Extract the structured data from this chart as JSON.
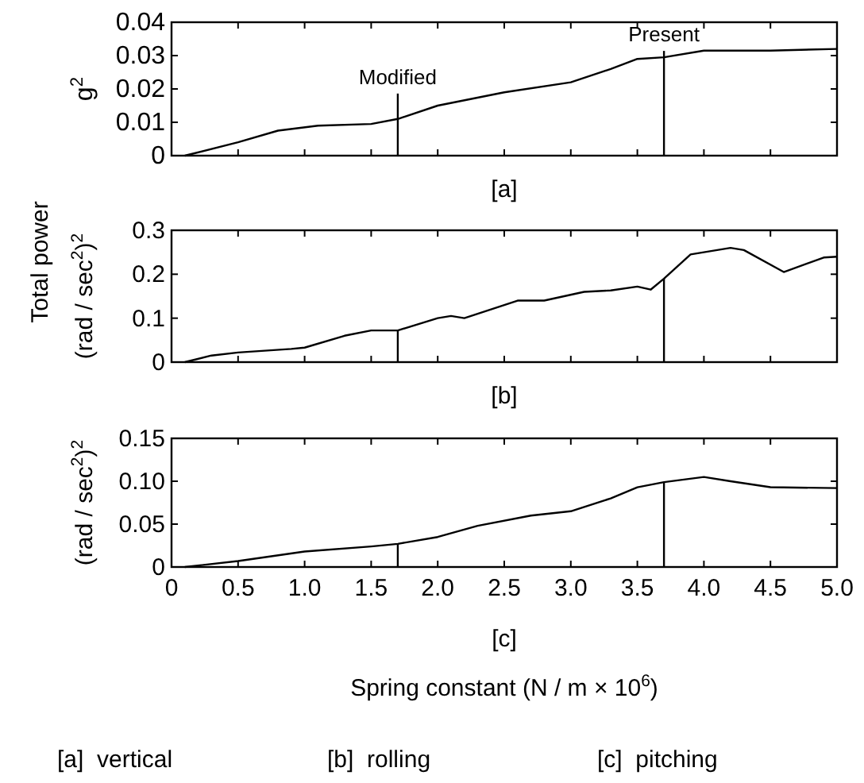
{
  "chart_data": [
    {
      "type": "line",
      "ylabel": "g$^{2}$",
      "xlim": [
        0,
        5
      ],
      "ylim": [
        0,
        0.04
      ],
      "xticks": [
        0.5,
        1,
        1.5,
        2,
        2.5,
        3,
        3.5,
        4,
        4.5
      ],
      "yticks": [
        0,
        0.01,
        0.02,
        0.03,
        0.04
      ],
      "tick_labels": "y",
      "marker": "none",
      "line_style": "solid",
      "series": [
        {
          "color": "#000000",
          "x": [
            0.1,
            0.5,
            0.8,
            1.1,
            1.5,
            1.7,
            2.0,
            2.5,
            3.0,
            3.3,
            3.5,
            3.7,
            4.0,
            4.5,
            5.0
          ],
          "values": [
            0,
            0.004,
            0.0075,
            0.009,
            0.0095,
            0.011,
            0.015,
            0.019,
            0.022,
            0.026,
            0.029,
            0.0295,
            0.0315,
            0.0315,
            0.032
          ]
        }
      ],
      "ref_lines": [
        {
          "axis": "x",
          "value": 1.7,
          "label": "Modified"
        },
        {
          "axis": "x",
          "value": 3.7,
          "label": "Present"
        }
      ],
      "annotations": [
        "[a]"
      ]
    },
    {
      "type": "line",
      "ylabel": "(rad / sec$^{2}$)$^{2}$",
      "xlim": [
        0,
        5
      ],
      "ylim": [
        0,
        0.3
      ],
      "xticks": [
        0.5,
        1,
        1.5,
        2,
        2.5,
        3,
        3.5,
        4,
        4.5
      ],
      "yticks": [
        0,
        0.1,
        0.2,
        0.3
      ],
      "tick_labels": "y",
      "marker": "none",
      "line_style": "solid",
      "series": [
        {
          "color": "#000000",
          "x": [
            0.1,
            0.3,
            0.5,
            0.9,
            1.0,
            1.3,
            1.5,
            1.7,
            2.0,
            2.1,
            2.2,
            2.6,
            2.8,
            3.1,
            3.3,
            3.5,
            3.6,
            3.7,
            3.9,
            4.0,
            4.2,
            4.3,
            4.6,
            4.9,
            5.0
          ],
          "values": [
            0,
            0.015,
            0.022,
            0.03,
            0.033,
            0.06,
            0.072,
            0.072,
            0.1,
            0.105,
            0.1,
            0.14,
            0.14,
            0.16,
            0.163,
            0.172,
            0.165,
            0.19,
            0.245,
            0.25,
            0.26,
            0.255,
            0.205,
            0.238,
            0.24
          ]
        }
      ],
      "ref_lines": [
        {
          "axis": "x",
          "value": 1.7
        },
        {
          "axis": "x",
          "value": 3.7
        }
      ],
      "annotations": [
        "[b]",
        "Total power"
      ]
    },
    {
      "type": "line",
      "ylabel": "(rad / sec$^{2}$)$^{2}$",
      "xlabel": "Spring constant (N / m × 10$^{6}$)",
      "xlim": [
        0,
        5
      ],
      "ylim": [
        0,
        0.15
      ],
      "xticks": [
        0,
        {
          "value": 0.5,
          "label": "0.5"
        },
        {
          "value": 1,
          "label": "1.0"
        },
        {
          "value": 1.5,
          "label": "1.5"
        },
        {
          "value": 2,
          "label": "2.0"
        },
        {
          "value": 2.5,
          "label": "2.5"
        },
        {
          "value": 3,
          "label": "3.0"
        },
        {
          "value": 3.5,
          "label": "3.5"
        },
        {
          "value": 4,
          "label": "4.0"
        },
        {
          "value": 4.5,
          "label": "4.5"
        },
        {
          "value": 5,
          "label": "5.0"
        }
      ],
      "yticks": [
        0,
        0.05,
        {
          "value": 0.1,
          "label": "0.10"
        },
        0.15
      ],
      "marker": "none",
      "line_style": "solid",
      "series": [
        {
          "color": "#000000",
          "x": [
            0.1,
            0.5,
            1.0,
            1.5,
            1.7,
            2.0,
            2.3,
            2.7,
            3.0,
            3.3,
            3.5,
            3.7,
            4.0,
            4.2,
            4.5,
            5.0
          ],
          "values": [
            0,
            0.007,
            0.018,
            0.024,
            0.027,
            0.035,
            0.048,
            0.06,
            0.065,
            0.08,
            0.093,
            0.099,
            0.105,
            0.1,
            0.093,
            0.092
          ]
        }
      ],
      "ref_lines": [
        {
          "axis": "x",
          "value": 1.7
        },
        {
          "axis": "x",
          "value": 3.7
        }
      ],
      "annotations": [
        "[c]",
        "[a]  vertical",
        "[b]  rolling",
        "[c]  pitching"
      ]
    }
  ]
}
